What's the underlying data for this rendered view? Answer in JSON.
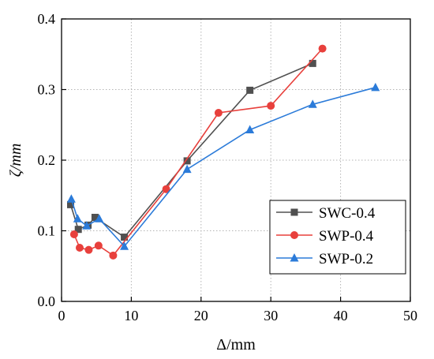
{
  "chart_data": {
    "type": "line",
    "xlabel": "Δ/mm",
    "ylabel": "ζ/mm",
    "xlim": [
      0,
      50
    ],
    "ylim": [
      0.0,
      0.4
    ],
    "x_ticks": [
      "0",
      "10",
      "20",
      "30",
      "40",
      "50"
    ],
    "y_ticks": [
      "0.0",
      "0.1",
      "0.2",
      "0.3",
      "0.4"
    ],
    "grid": true,
    "legend_position": "bottom-right",
    "series": [
      {
        "name": "SWC-0.4",
        "color": "#505050",
        "marker": "square",
        "points": [
          [
            1.3,
            0.137
          ],
          [
            2.4,
            0.102
          ],
          [
            3.8,
            0.108
          ],
          [
            4.8,
            0.119
          ],
          [
            9.0,
            0.091
          ],
          [
            18.0,
            0.199
          ],
          [
            27.0,
            0.299
          ],
          [
            36.0,
            0.337
          ]
        ]
      },
      {
        "name": "SWP-0.4",
        "color": "#e8403c",
        "marker": "circle",
        "points": [
          [
            1.8,
            0.095
          ],
          [
            2.6,
            0.076
          ],
          [
            3.9,
            0.073
          ],
          [
            5.3,
            0.079
          ],
          [
            7.4,
            0.065
          ],
          [
            15.0,
            0.159
          ],
          [
            22.5,
            0.267
          ],
          [
            30.0,
            0.277
          ],
          [
            37.4,
            0.358
          ]
        ]
      },
      {
        "name": "SWP-0.2",
        "color": "#2b7bd9",
        "marker": "triangle",
        "points": [
          [
            1.4,
            0.145
          ],
          [
            2.3,
            0.117
          ],
          [
            3.6,
            0.107
          ],
          [
            5.4,
            0.117
          ],
          [
            9.0,
            0.078
          ],
          [
            18.0,
            0.187
          ],
          [
            27.0,
            0.243
          ],
          [
            36.0,
            0.279
          ],
          [
            45.0,
            0.303
          ]
        ]
      }
    ]
  }
}
